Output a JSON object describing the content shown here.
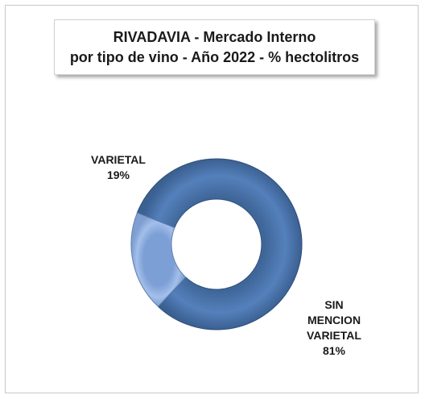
{
  "chart_data": {
    "type": "pie",
    "style": "doughnut",
    "title_lines": [
      "RIVADAVIA - Mercado Interno",
      "por tipo de vino - Año 2022 - % hectolitros"
    ],
    "slices": [
      {
        "label_lines": [
          "SIN",
          "MENCION",
          "VARIETAL"
        ],
        "value": 81,
        "value_label": "81%",
        "color": "#4a73a8"
      },
      {
        "label_lines": [
          "VARIETAL"
        ],
        "value": 19,
        "value_label": "19%",
        "color": "#8eaee0"
      }
    ]
  }
}
